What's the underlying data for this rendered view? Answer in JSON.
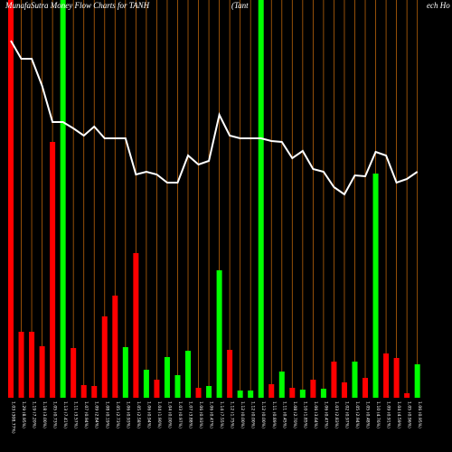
{
  "chart_data": {
    "type": "bar",
    "title": "MunafaSutra  Money Flow  Charts for TANH",
    "subtitle": [
      "(Tant",
      "ech Ho"
    ],
    "categories": [
      "1.03 (308.77%)",
      "1.29 (8.95%)",
      "1.19 (7.20%)",
      "1.18 (3.00%)",
      "1.05 (0.73%)",
      "1.13 (7.41%)",
      "1.11 (3.57%)",
      "1.07 (0.94%)",
      "1.09 (2.84%)",
      "1.08 (0.19%)",
      "1.05 (2.73%)",
      "1.06 (0.93%)",
      "1.05 (2.58%)",
      "1.06 (0.94%)",
      "1.04 (1.90%)",
      "1.04 (0.00%)",
      "1.03 (0.97%)",
      "1.07 (3.88%)",
      "1.06 (0.93%)",
      "1.06 (0.47%)",
      "1.14 (7.55%)",
      "1.12 (1.75%)",
      "1.12 (0.00%)",
      "1.12 (0.00%)",
      "1.12 (0.00%)",
      "1.11 (0.89%)",
      "1.11 (0.45%)",
      "1.08 (2.70%)",
      "1.10 (1.85%)",
      "1.06 (3.64%)",
      "1.06 (0.47%)",
      "1.03 (2.83%)",
      "1.02 (0.97%)",
      "1.05 (2.94%)",
      "1.05 (0.48%)",
      "1.10 (4.76%)",
      "1.09 (0.91%)",
      "1.04 (4.59%)",
      "1.05 (0.96%)",
      "1.06 (0.95%)"
    ],
    "values": [
      440,
      73,
      73,
      57,
      283,
      440,
      55,
      14,
      13,
      90,
      113,
      56,
      160,
      31,
      20,
      45,
      25,
      52,
      11,
      13,
      141,
      53,
      8,
      8,
      440,
      15,
      29,
      11,
      9,
      20,
      10,
      40,
      17,
      40,
      22,
      248,
      49,
      44,
      5,
      37
    ],
    "colors": [
      "#ff0000",
      "#ff0000",
      "#ff0000",
      "#ff0000",
      "#ff0000",
      "#00ff00",
      "#ff0000",
      "#ff0000",
      "#ff0000",
      "#ff0000",
      "#ff0000",
      "#00ff00",
      "#ff0000",
      "#00ff00",
      "#ff0000",
      "#00ff00",
      "#00ff00",
      "#00ff00",
      "#ff0000",
      "#00ff00",
      "#00ff00",
      "#ff0000",
      "#00ff00",
      "#00ff00",
      "#00ff00",
      "#ff0000",
      "#00ff00",
      "#ff0000",
      "#00ff00",
      "#ff0000",
      "#00ff00",
      "#ff0000",
      "#ff0000",
      "#00ff00",
      "#ff0000",
      "#00ff00",
      "#ff0000",
      "#ff0000",
      "#ff0000",
      "#00ff00"
    ],
    "line_values": [
      395,
      375,
      375,
      345,
      305,
      305,
      298,
      290,
      300,
      287,
      287,
      287,
      247,
      250,
      247,
      238,
      238,
      268,
      258,
      262,
      313,
      290,
      287,
      287,
      287,
      284,
      283,
      265,
      273,
      253,
      250,
      233,
      225,
      246,
      245,
      272,
      268,
      238,
      242,
      250
    ],
    "line_color": "#ffffff",
    "ylim": [
      0,
      440
    ]
  }
}
